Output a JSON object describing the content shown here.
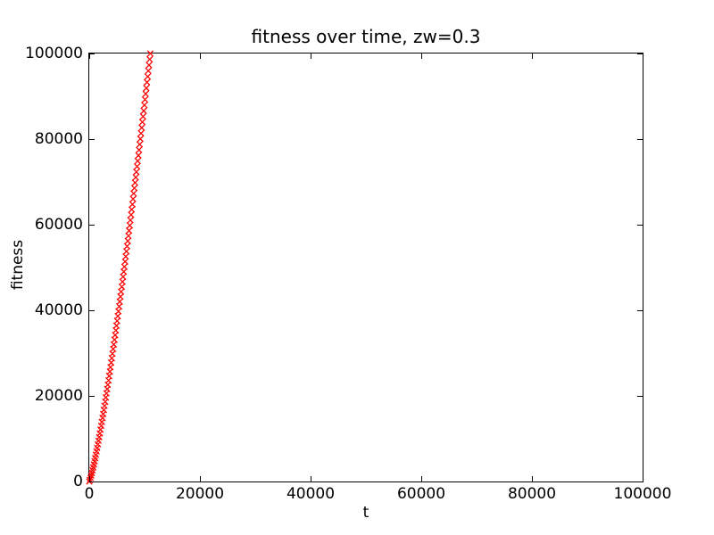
{
  "figure": {
    "background": "#ffffff",
    "axis_color": "#000000"
  },
  "chart_data": {
    "type": "scatter",
    "title": "fitness over time, zw=0.3",
    "xlabel": "t",
    "ylabel": "fitness",
    "xlim": [
      0,
      100000
    ],
    "ylim": [
      0,
      100000
    ],
    "x_ticks": [
      0,
      20000,
      40000,
      60000,
      80000,
      100000
    ],
    "x_tick_labels": [
      "0",
      "20000",
      "40000",
      "60000",
      "80000",
      "100000"
    ],
    "y_ticks": [
      0,
      20000,
      40000,
      60000,
      80000,
      100000
    ],
    "y_tick_labels": [
      "0",
      "20000",
      "40000",
      "60000",
      "80000",
      "100000"
    ],
    "grid": false,
    "legend": "none",
    "marker": "x",
    "marker_color": "#ff0000",
    "series": [
      {
        "name": "fitness",
        "x": [
          0,
          120,
          240,
          360,
          480,
          600,
          720,
          840,
          960,
          1080,
          1200,
          1320,
          1440,
          1560,
          1680,
          1800,
          1920,
          2040,
          2160,
          2280,
          2400,
          2520,
          2640,
          2760,
          2880,
          3000,
          3120,
          3240,
          3360,
          3480,
          3600,
          3720,
          3840,
          3960,
          4080,
          4200,
          4320,
          4440,
          4560,
          4680,
          4800,
          4920,
          5040,
          5160,
          5280,
          5400,
          5520,
          5640,
          5760,
          5880,
          6000,
          6120,
          6240,
          6360,
          6480,
          6600,
          6720,
          6840,
          6960,
          7080,
          7200,
          7320,
          7440,
          7560,
          7680,
          7800,
          7920,
          8040,
          8160,
          8280,
          8400,
          8520,
          8640,
          8760,
          8880,
          9000,
          9120,
          9240,
          9360,
          9480,
          9600,
          9720,
          9840,
          9960,
          10080,
          10200,
          10320,
          10440,
          10560,
          10680,
          10800,
          10920,
          11040
        ],
        "y": [
          0,
          351,
          835,
          1386,
          1986,
          2624,
          3296,
          3997,
          4722,
          5472,
          6242,
          7032,
          7839,
          8664,
          9505,
          10361,
          11232,
          12116,
          13014,
          13924,
          14845,
          15779,
          16724,
          17679,
          18646,
          19622,
          20608,
          21603,
          22607,
          23621,
          24643,
          25676,
          26714,
          27764,
          28817,
          29881,
          30952,
          32029,
          33116,
          34212,
          35309,
          36417,
          37529,
          38649,
          39776,
          40909,
          42049,
          43194,
          44346,
          45505,
          46667,
          47837,
          49013,
          50192,
          51381,
          52573,
          53771,
          54973,
          56182,
          57397,
          58614,
          59840,
          61068,
          62303,
          63537,
          64781,
          66030,
          67282,
          68538,
          69804,
          71069,
          72341,
          73617,
          74896,
          76182,
          77469,
          78764,
          80062,
          81362,
          82666,
          83979,
          85293,
          86611,
          87939,
          89260,
          90591,
          91925,
          93263,
          94607,
          95954,
          97300,
          98656,
          100000
        ]
      }
    ]
  }
}
